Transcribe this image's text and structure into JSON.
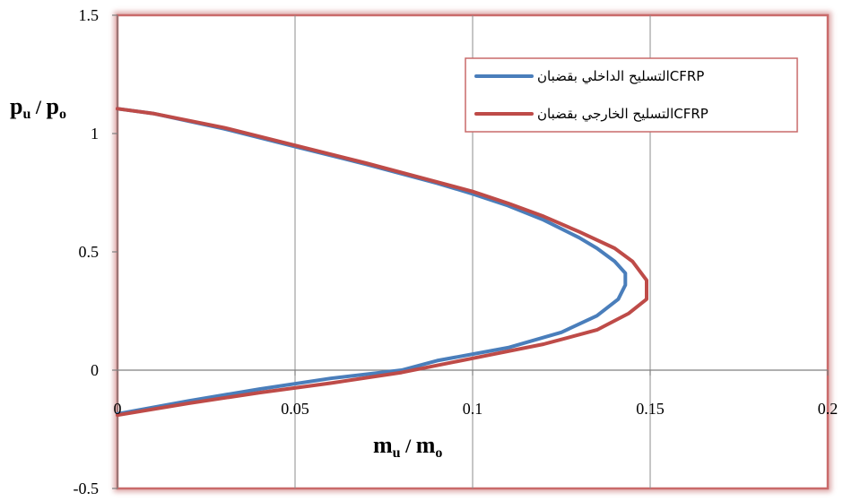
{
  "chart_data": {
    "type": "line",
    "title": "",
    "ylabel": {
      "main": "p",
      "sub1": "u",
      "sep": " / ",
      "main2": "p",
      "sub2": "o"
    },
    "xlabel": {
      "main": "m",
      "sub1": "u",
      "sep": " / ",
      "main2": "m",
      "sub2": "o"
    },
    "xlim": [
      0,
      0.2
    ],
    "ylim": [
      -0.5,
      1.5
    ],
    "xticks": [
      "0",
      "0.05",
      "0.1",
      "0.15",
      "0.2"
    ],
    "yticks": [
      "-0.5",
      "0",
      "0.5",
      "1",
      "1.5"
    ],
    "grid": "vertical",
    "legend_position": "top-right",
    "series": [
      {
        "name": "التسليح الداخلي بقضبانCFRP",
        "color": "#4a7ebb",
        "points": [
          [
            0,
            1.105
          ],
          [
            0.01,
            1.085
          ],
          [
            0.03,
            1.02
          ],
          [
            0.05,
            0.945
          ],
          [
            0.07,
            0.87
          ],
          [
            0.09,
            0.79
          ],
          [
            0.1,
            0.745
          ],
          [
            0.11,
            0.695
          ],
          [
            0.12,
            0.635
          ],
          [
            0.13,
            0.56
          ],
          [
            0.135,
            0.515
          ],
          [
            0.14,
            0.46
          ],
          [
            0.143,
            0.41
          ],
          [
            0.143,
            0.36
          ],
          [
            0.141,
            0.3
          ],
          [
            0.135,
            0.23
          ],
          [
            0.125,
            0.16
          ],
          [
            0.11,
            0.095
          ],
          [
            0.09,
            0.04
          ],
          [
            0.08,
            0.0
          ],
          [
            0.06,
            -0.035
          ],
          [
            0.04,
            -0.08
          ],
          [
            0.02,
            -0.13
          ],
          [
            0,
            -0.185
          ]
        ]
      },
      {
        "name": "التسليح الخارجي بقضبانCFRP",
        "color": "#be4b48",
        "points": [
          [
            0,
            1.105
          ],
          [
            0.01,
            1.085
          ],
          [
            0.03,
            1.025
          ],
          [
            0.05,
            0.95
          ],
          [
            0.07,
            0.875
          ],
          [
            0.09,
            0.795
          ],
          [
            0.1,
            0.755
          ],
          [
            0.11,
            0.705
          ],
          [
            0.12,
            0.65
          ],
          [
            0.13,
            0.585
          ],
          [
            0.14,
            0.515
          ],
          [
            0.145,
            0.46
          ],
          [
            0.149,
            0.38
          ],
          [
            0.149,
            0.3
          ],
          [
            0.144,
            0.24
          ],
          [
            0.135,
            0.17
          ],
          [
            0.12,
            0.11
          ],
          [
            0.1,
            0.05
          ],
          [
            0.08,
            -0.01
          ],
          [
            0.06,
            -0.055
          ],
          [
            0.04,
            -0.095
          ],
          [
            0.02,
            -0.14
          ],
          [
            0,
            -0.19
          ]
        ]
      }
    ]
  }
}
